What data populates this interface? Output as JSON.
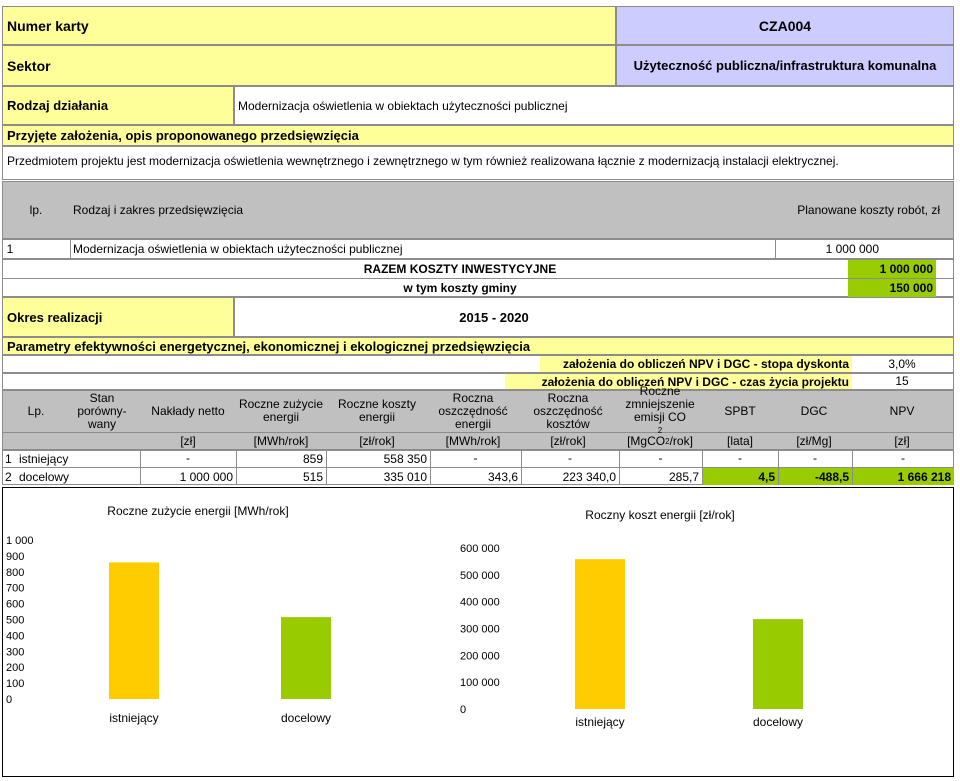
{
  "card": {
    "number_label": "Numer karty",
    "number_value": "CZA004",
    "sector_label": "Sektor",
    "sector_value": "Użyteczność publiczna/infrastruktura komunalna",
    "action_label": "Rodzaj działania",
    "action_value": "Modernizacja oświetlenia w obiektach użyteczności publicznej",
    "assumptions_label": "Przyjęte założenia, opis proponowanego przedsięwzięcia",
    "assumptions_text": "Przedmiotem projektu jest modernizacja oświetlenia wewnętrznego i zewnętrznego w tym również realizowana łącznie z modernizacją instalacji elektrycznej."
  },
  "costs": {
    "col_lp": "lp.",
    "col_scope": "Rodzaj i zakres przedsięwzięcia",
    "col_cost": "Planowane koszty robót, zł",
    "rows": [
      {
        "lp": "1",
        "scope": "Modernizacja oświetlenia w obiektach użyteczności publicznej",
        "cost": "1 000 000"
      }
    ],
    "total_label": "RAZEM KOSZTY INWESTYCYJNE",
    "total_value": "1 000 000",
    "gmina_label": "w tym koszty gminy",
    "gmina_value": "150 000"
  },
  "period": {
    "label": "Okres realizacji",
    "value": "2015 - 2020"
  },
  "params": {
    "title": "Parametry efektywności energetycznej, ekonomicznej i ekologicznej przedsięwzięcia",
    "discount_label": "założenia do obliczeń NPV i DGC - stopa dyskonta",
    "discount_value": "3,0%",
    "lifetime_label": "założenia do obliczeń NPV i DGC - czas życia projektu",
    "lifetime_value": "15",
    "headers": {
      "lp": "Lp.",
      "stan": "Stan porówny-wany",
      "naklady": "Nakłady netto",
      "zuzycie": "Roczne zużycie energii",
      "koszty": "Roczne koszty energii",
      "osz_energii": "Roczna oszczędność energii",
      "osz_kosztow": "Roczna oszczędność kosztów",
      "emisja_a": "Roczne zmniejszenie emisji CO",
      "emisja_sub": "2",
      "spbt": "SPBT",
      "dgc": "DGC",
      "npv": "NPV"
    },
    "units": {
      "naklady": "[zł]",
      "zuzycie": "[MWh/rok]",
      "koszty": "[zł/rok]",
      "osz_energii": "[MWh/rok]",
      "osz_kosztow": "[zł/rok]",
      "emisja_a": "[MgCO",
      "emisja_sub": "2",
      "emisja_b": "/rok]",
      "spbt": "[lata]",
      "dgc": "[zł/Mg]",
      "npv": "[zł]"
    },
    "rows": [
      {
        "lp": "1",
        "stan": "istniejący",
        "naklady": "-",
        "zuzycie": "859",
        "koszty": "558 350",
        "osz_energii": "-",
        "osz_kosztow": "-",
        "emisja": "-",
        "spbt": "-",
        "dgc": "-",
        "npv": "-"
      },
      {
        "lp": "2",
        "stan": "docelowy",
        "naklady": "1 000 000",
        "zuzycie": "515",
        "koszty": "335 010",
        "osz_energii": "343,6",
        "osz_kosztow": "223 340,0",
        "emisja": "285,7",
        "spbt": "4,5",
        "dgc": "-488,5",
        "npv": "1 666 218"
      }
    ]
  },
  "colors": {
    "yellow_bg": "#ffff99",
    "violet_bg": "#ccccff",
    "grey_bg": "#c0c0c0",
    "green_highlight": "#99cc00",
    "bar_existing": "#ffcc00",
    "bar_target": "#99cc00"
  },
  "chart_data": [
    {
      "type": "bar",
      "title": "Roczne zużycie energii [MWh/rok]",
      "categories": [
        "istniejący",
        "docelowy"
      ],
      "values": [
        859,
        515
      ],
      "colors": [
        "#ffcc00",
        "#99cc00"
      ],
      "ylim": [
        0,
        1000
      ],
      "yticks": [
        0,
        100,
        200,
        300,
        400,
        500,
        600,
        700,
        800,
        900,
        1000
      ],
      "ytick_labels": [
        "0",
        "100",
        "200",
        "300",
        "400",
        "500",
        "600",
        "700",
        "800",
        "900",
        "1 000"
      ],
      "grid": false,
      "legend": "none"
    },
    {
      "type": "bar",
      "title": "Roczny koszt energii [zł/rok]",
      "categories": [
        "istniejący",
        "docelowy"
      ],
      "values": [
        558350,
        335010
      ],
      "colors": [
        "#ffcc00",
        "#99cc00"
      ],
      "ylim": [
        0,
        600000
      ],
      "yticks": [
        0,
        100000,
        200000,
        300000,
        400000,
        500000,
        600000
      ],
      "ytick_labels": [
        "0",
        "100 000",
        "200 000",
        "300 000",
        "400 000",
        "500 000",
        "600 000"
      ],
      "grid": false,
      "legend": "none"
    }
  ]
}
